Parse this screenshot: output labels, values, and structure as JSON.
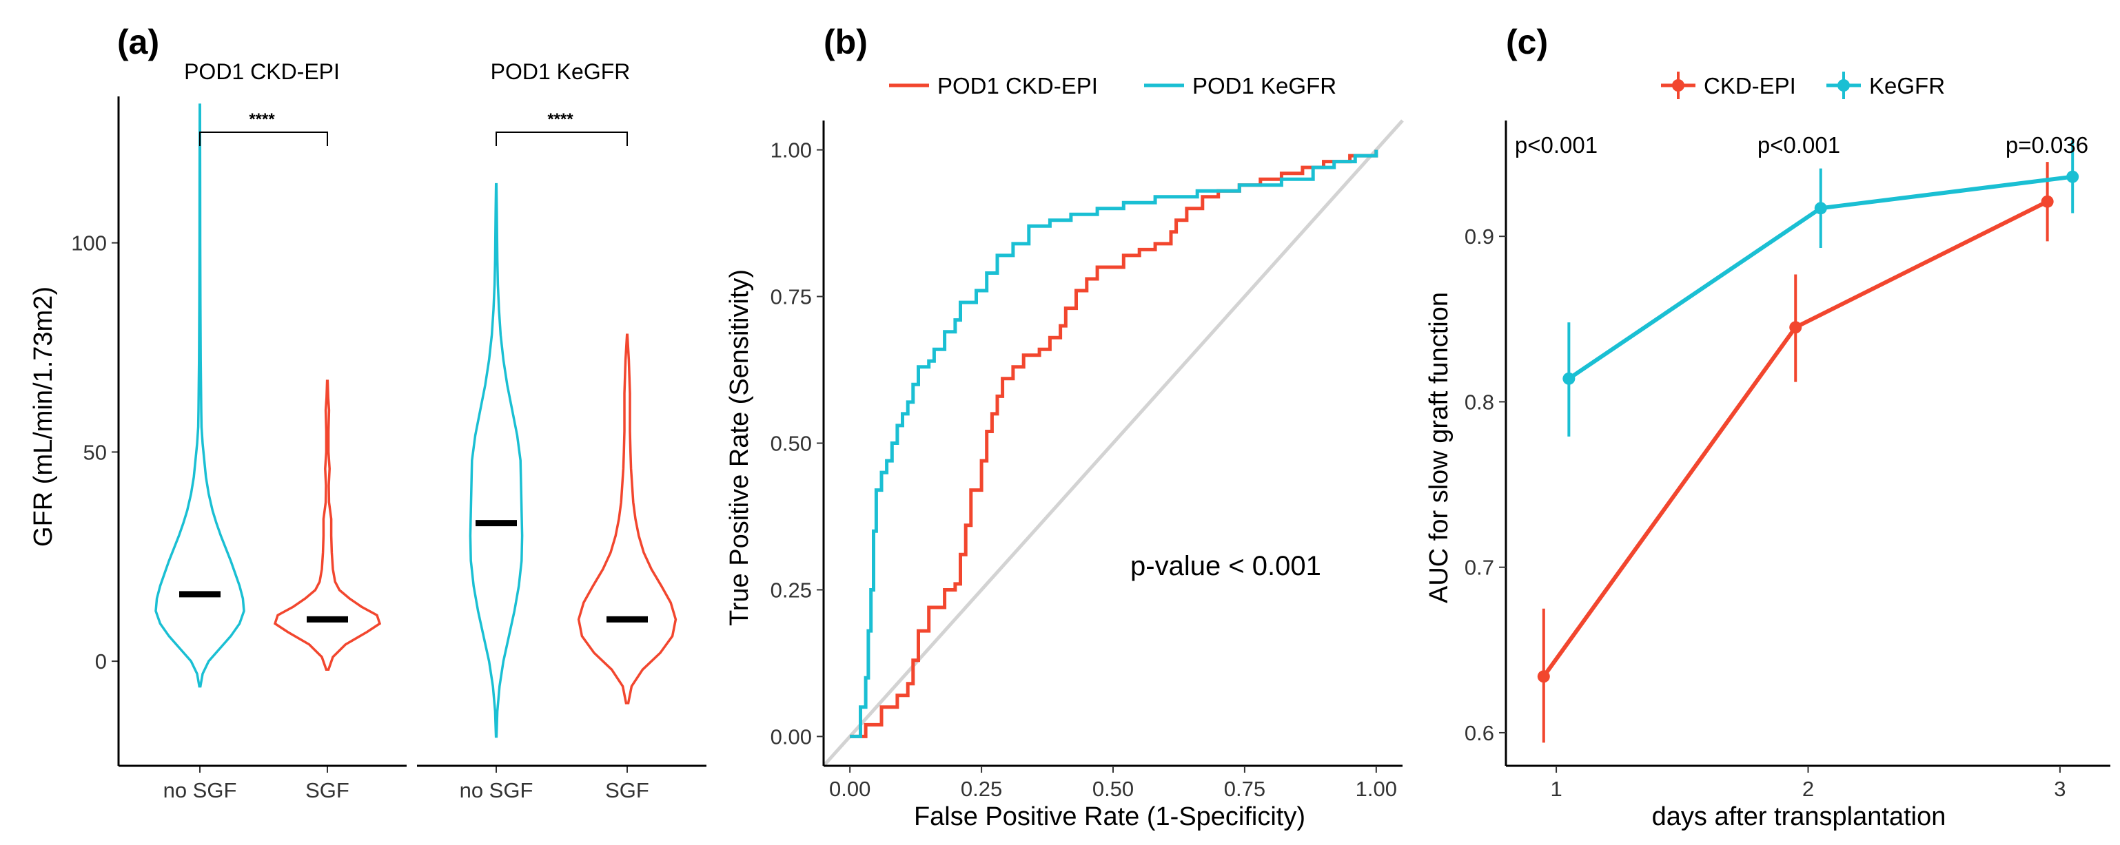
{
  "chart_data": [
    {
      "panel": "(a)",
      "type": "violin",
      "ylabel": "GFR (mL/min/1.73m2)",
      "ylim": [
        -25,
        135
      ],
      "yticks": [
        0,
        50,
        100
      ],
      "facets": [
        {
          "title": "POD1 CKD-EPI",
          "significance": "****",
          "groups": [
            {
              "label": "no SGF",
              "color": "#1ABFD3",
              "median": 16,
              "min": -6,
              "max": 133,
              "profile": [
                [
                  -6,
                  0.01
                ],
                [
                  -3,
                  0.05
                ],
                [
                  0,
                  0.16
                ],
                [
                  3,
                  0.36
                ],
                [
                  6,
                  0.56
                ],
                [
                  9,
                  0.72
                ],
                [
                  12,
                  0.8
                ],
                [
                  15,
                  0.78
                ],
                [
                  18,
                  0.72
                ],
                [
                  21,
                  0.64
                ],
                [
                  24,
                  0.56
                ],
                [
                  27,
                  0.47
                ],
                [
                  30,
                  0.38
                ],
                [
                  33,
                  0.3
                ],
                [
                  36,
                  0.23
                ],
                [
                  40,
                  0.16
                ],
                [
                  44,
                  0.11
                ],
                [
                  48,
                  0.08
                ],
                [
                  52,
                  0.05
                ],
                [
                  56,
                  0.03
                ],
                [
                  60,
                  0.025
                ],
                [
                  66,
                  0.02
                ],
                [
                  72,
                  0.015
                ],
                [
                  85,
                  0.01
                ],
                [
                  100,
                  0.006
                ],
                [
                  115,
                  0.005
                ],
                [
                  133,
                  0.003
                ]
              ]
            },
            {
              "label": "SGF",
              "color": "#F2462E",
              "median": 10,
              "min": -2,
              "max": 67,
              "profile": [
                [
                  -2,
                  0.02
                ],
                [
                  1,
                  0.1
                ],
                [
                  4,
                  0.33
                ],
                [
                  7,
                  0.72
                ],
                [
                  9,
                  0.95
                ],
                [
                  11,
                  0.9
                ],
                [
                  13,
                  0.62
                ],
                [
                  15,
                  0.4
                ],
                [
                  17,
                  0.22
                ],
                [
                  19,
                  0.14
                ],
                [
                  22,
                  0.1
                ],
                [
                  26,
                  0.08
                ],
                [
                  30,
                  0.07
                ],
                [
                  34,
                  0.07
                ],
                [
                  38,
                  0.03
                ],
                [
                  42,
                  0.025
                ],
                [
                  46,
                  0.04
                ],
                [
                  50,
                  0.02
                ],
                [
                  55,
                  0.02
                ],
                [
                  60,
                  0.03
                ],
                [
                  63,
                  0.015
                ],
                [
                  67,
                  0.005
                ]
              ]
            }
          ]
        },
        {
          "title": "POD1 KeGFR",
          "significance": "****",
          "groups": [
            {
              "label": "no SGF",
              "color": "#1ABFD3",
              "median": 33,
              "min": -18,
              "max": 114,
              "profile": [
                [
                  -18,
                  0.005
                ],
                [
                  -12,
                  0.02
                ],
                [
                  -6,
                  0.06
                ],
                [
                  0,
                  0.13
                ],
                [
                  6,
                  0.23
                ],
                [
                  12,
                  0.33
                ],
                [
                  18,
                  0.41
                ],
                [
                  24,
                  0.46
                ],
                [
                  30,
                  0.47
                ],
                [
                  36,
                  0.46
                ],
                [
                  42,
                  0.45
                ],
                [
                  48,
                  0.44
                ],
                [
                  54,
                  0.38
                ],
                [
                  60,
                  0.29
                ],
                [
                  66,
                  0.2
                ],
                [
                  72,
                  0.13
                ],
                [
                  78,
                  0.08
                ],
                [
                  84,
                  0.05
                ],
                [
                  90,
                  0.03
                ],
                [
                  96,
                  0.02
                ],
                [
                  102,
                  0.015
                ],
                [
                  108,
                  0.01
                ],
                [
                  114,
                  0.004
                ]
              ]
            },
            {
              "label": "SGF",
              "color": "#F2462E",
              "median": 10,
              "min": -10,
              "max": 78,
              "profile": [
                [
                  -10,
                  0.02
                ],
                [
                  -6,
                  0.08
                ],
                [
                  -2,
                  0.28
                ],
                [
                  2,
                  0.6
                ],
                [
                  6,
                  0.82
                ],
                [
                  10,
                  0.88
                ],
                [
                  14,
                  0.79
                ],
                [
                  18,
                  0.62
                ],
                [
                  22,
                  0.44
                ],
                [
                  26,
                  0.3
                ],
                [
                  30,
                  0.21
                ],
                [
                  34,
                  0.15
                ],
                [
                  38,
                  0.11
                ],
                [
                  42,
                  0.09
                ],
                [
                  46,
                  0.07
                ],
                [
                  50,
                  0.06
                ],
                [
                  55,
                  0.05
                ],
                [
                  60,
                  0.05
                ],
                [
                  64,
                  0.05
                ],
                [
                  68,
                  0.04
                ],
                [
                  72,
                  0.03
                ],
                [
                  78,
                  0.004
                ]
              ]
            }
          ]
        }
      ]
    },
    {
      "panel": "(b)",
      "type": "line",
      "subtype": "roc",
      "xlabel": "False Positive Rate (1-Specificity)",
      "ylabel": "True Positive Rate (Sensitivity)",
      "xlim": [
        -0.05,
        1.05
      ],
      "ylim": [
        -0.05,
        1.05
      ],
      "xticks": [
        "0.00",
        "0.25",
        "0.50",
        "0.75",
        "1.00"
      ],
      "yticks": [
        "0.00",
        "0.25",
        "0.50",
        "0.75",
        "1.00"
      ],
      "annotation": "p-value < 0.001",
      "diagonal_color": "#D3D3D3",
      "series": [
        {
          "name": "POD1 CKD-EPI",
          "color": "#F2462E",
          "points": [
            [
              0,
              0
            ],
            [
              0.03,
              0.02
            ],
            [
              0.06,
              0.05
            ],
            [
              0.09,
              0.07
            ],
            [
              0.11,
              0.09
            ],
            [
              0.12,
              0.13
            ],
            [
              0.13,
              0.18
            ],
            [
              0.15,
              0.22
            ],
            [
              0.18,
              0.25
            ],
            [
              0.2,
              0.26
            ],
            [
              0.21,
              0.31
            ],
            [
              0.22,
              0.36
            ],
            [
              0.23,
              0.42
            ],
            [
              0.25,
              0.47
            ],
            [
              0.26,
              0.52
            ],
            [
              0.27,
              0.55
            ],
            [
              0.28,
              0.58
            ],
            [
              0.29,
              0.61
            ],
            [
              0.31,
              0.63
            ],
            [
              0.33,
              0.65
            ],
            [
              0.36,
              0.66
            ],
            [
              0.38,
              0.68
            ],
            [
              0.4,
              0.7
            ],
            [
              0.41,
              0.73
            ],
            [
              0.43,
              0.76
            ],
            [
              0.45,
              0.78
            ],
            [
              0.47,
              0.8
            ],
            [
              0.52,
              0.82
            ],
            [
              0.55,
              0.83
            ],
            [
              0.58,
              0.84
            ],
            [
              0.61,
              0.86
            ],
            [
              0.62,
              0.88
            ],
            [
              0.64,
              0.9
            ],
            [
              0.67,
              0.92
            ],
            [
              0.7,
              0.93
            ],
            [
              0.74,
              0.94
            ],
            [
              0.78,
              0.95
            ],
            [
              0.82,
              0.96
            ],
            [
              0.86,
              0.97
            ],
            [
              0.9,
              0.98
            ],
            [
              0.95,
              0.99
            ],
            [
              1.0,
              1.0
            ]
          ]
        },
        {
          "name": "POD1 KeGFR",
          "color": "#1ABFD3",
          "points": [
            [
              0,
              0
            ],
            [
              0.02,
              0.05
            ],
            [
              0.03,
              0.1
            ],
            [
              0.035,
              0.18
            ],
            [
              0.04,
              0.25
            ],
            [
              0.045,
              0.35
            ],
            [
              0.05,
              0.42
            ],
            [
              0.06,
              0.45
            ],
            [
              0.07,
              0.47
            ],
            [
              0.08,
              0.5
            ],
            [
              0.09,
              0.53
            ],
            [
              0.1,
              0.55
            ],
            [
              0.11,
              0.57
            ],
            [
              0.12,
              0.6
            ],
            [
              0.13,
              0.63
            ],
            [
              0.15,
              0.64
            ],
            [
              0.16,
              0.66
            ],
            [
              0.18,
              0.69
            ],
            [
              0.2,
              0.71
            ],
            [
              0.21,
              0.74
            ],
            [
              0.24,
              0.76
            ],
            [
              0.26,
              0.79
            ],
            [
              0.28,
              0.82
            ],
            [
              0.31,
              0.84
            ],
            [
              0.34,
              0.87
            ],
            [
              0.38,
              0.88
            ],
            [
              0.42,
              0.89
            ],
            [
              0.47,
              0.9
            ],
            [
              0.52,
              0.91
            ],
            [
              0.58,
              0.92
            ],
            [
              0.66,
              0.93
            ],
            [
              0.74,
              0.94
            ],
            [
              0.82,
              0.95
            ],
            [
              0.88,
              0.97
            ],
            [
              0.92,
              0.98
            ],
            [
              0.96,
              0.99
            ],
            [
              1.0,
              1.0
            ]
          ]
        }
      ]
    },
    {
      "panel": "(c)",
      "type": "line",
      "xlabel": "days after transplantation",
      "ylabel": "AUC for slow graft function",
      "xlim": [
        0.8,
        3.2
      ],
      "ylim": [
        0.58,
        0.97
      ],
      "xticks": [
        1,
        2,
        3
      ],
      "yticks": [
        "0.6",
        "0.7",
        "0.8",
        "0.9"
      ],
      "pvalues": [
        "p<0.001",
        "p<0.001",
        "p=0.036"
      ],
      "series": [
        {
          "name": "CKD-EPI",
          "color": "#F2462E",
          "dodge": -0.05,
          "x": [
            1,
            2,
            3
          ],
          "y": [
            0.634,
            0.845,
            0.921
          ],
          "lower": [
            0.594,
            0.812,
            0.897
          ],
          "upper": [
            0.675,
            0.877,
            0.945
          ]
        },
        {
          "name": "KeGFR",
          "color": "#1ABFD3",
          "dodge": 0.05,
          "x": [
            1,
            2,
            3
          ],
          "y": [
            0.814,
            0.917,
            0.936
          ],
          "lower": [
            0.779,
            0.893,
            0.914
          ],
          "upper": [
            0.848,
            0.941,
            0.958
          ]
        }
      ]
    }
  ]
}
